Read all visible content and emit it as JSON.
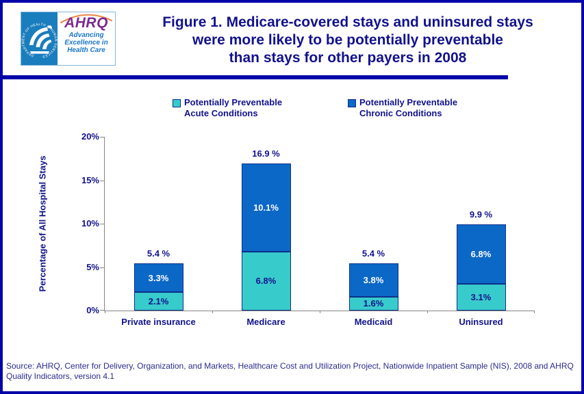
{
  "header": {
    "logo": {
      "acronym": "AHRQ",
      "tagline_lines": [
        "Advancing",
        "Excellence in",
        "Health Care"
      ],
      "seal_text": "DEPARTMENT OF HEALTH & HUMAN SERVICES · USA"
    },
    "title_lines": [
      "Figure 1. Medicare-covered stays and uninsured stays",
      "were more likely to be potentially preventable",
      "than stays for other payers in 2008"
    ]
  },
  "chart_data": {
    "type": "bar",
    "stacked": true,
    "categories": [
      "Private insurance",
      "Medicare",
      "Medicaid",
      "Uninsured"
    ],
    "series": [
      {
        "name": "Potentially Preventable Acute Conditions",
        "color": "#38CBCB",
        "label_color": "#12128C",
        "values": [
          2.1,
          6.8,
          1.6,
          3.1
        ]
      },
      {
        "name": "Potentially Preventable Chronic Conditions",
        "color": "#0C68C6",
        "label_color": "#FFFFFF",
        "values": [
          3.3,
          10.1,
          3.8,
          6.8
        ]
      }
    ],
    "totals": [
      "5.4 %",
      "16.9 %",
      "5.4 %",
      "9.9 %"
    ],
    "ylabel": "Percentage of All Hospital Stays",
    "xlabel": "",
    "ylim": [
      0,
      20
    ],
    "yticks": [
      0,
      5,
      10,
      15,
      20
    ],
    "ytick_suffix": "%",
    "grid": false,
    "legend": {
      "position": "top",
      "items": [
        {
          "label_lines": [
            "Potentially Preventable",
            "Acute Conditions"
          ],
          "color": "#38CBCB"
        },
        {
          "label_lines": [
            "Potentially Preventable",
            "Chronic Conditions"
          ],
          "color": "#0C68C6"
        }
      ]
    }
  },
  "footer": {
    "source": "Source: AHRQ, Center for Delivery, Organization, and Markets, Healthcare Cost and Utilization Project, Nationwide Inpatient Sample (NIS), 2008 and AHRQ Quality Indicators, version 4.1"
  },
  "theme": {
    "navy_text": "#12128C",
    "border_blue": "#0303A9",
    "teal": "#38CBCB",
    "blue": "#0C68C6",
    "axis_gray": "#848484",
    "hhs_blue": "#1A7DBE",
    "ahrq_purple": "#7A2B8F",
    "tagline_blue": "#1B76C6",
    "arc_orange": "#F08A4B"
  }
}
